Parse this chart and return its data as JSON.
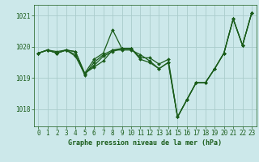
{
  "title": "Graphe pression niveau de la mer (hPa)",
  "bg_color": "#cce8ea",
  "grid_color": "#aacccc",
  "line_color": "#1a5c1a",
  "xlim": [
    -0.5,
    23.5
  ],
  "ylim": [
    1017.45,
    1021.35
  ],
  "yticks": [
    1018,
    1019,
    1020,
    1021
  ],
  "xticks": [
    0,
    1,
    2,
    3,
    4,
    5,
    6,
    7,
    8,
    9,
    10,
    11,
    12,
    13,
    14,
    15,
    16,
    17,
    18,
    19,
    20,
    21,
    22,
    23
  ],
  "series": [
    {
      "x": [
        0,
        1,
        2,
        3,
        4,
        5,
        6,
        7,
        8,
        9,
        10,
        11,
        12,
        13,
        14,
        15,
        16,
        17,
        18,
        19,
        20,
        21,
        22,
        23
      ],
      "y": [
        1019.8,
        1019.9,
        1019.8,
        1019.9,
        1019.7,
        1019.15,
        1019.6,
        1019.8,
        1020.55,
        1019.95,
        1019.95,
        1019.6,
        1019.5,
        1019.3,
        1019.5,
        1017.75,
        1018.3,
        1018.85,
        1018.85,
        1019.3,
        1019.8,
        1020.9,
        1020.05,
        1021.1
      ]
    },
    {
      "x": [
        0,
        1,
        2,
        3,
        4,
        5,
        6,
        7,
        8,
        9,
        10,
        11,
        12,
        13,
        14,
        15,
        16,
        17,
        18,
        19,
        20,
        21,
        22,
        23
      ],
      "y": [
        1019.8,
        1019.9,
        1019.8,
        1019.9,
        1019.85,
        1019.15,
        1019.35,
        1019.55,
        1019.9,
        1019.95,
        1019.95,
        1019.65,
        1019.65,
        1019.45,
        1019.6,
        1017.75,
        1018.3,
        1018.85,
        1018.85,
        1019.3,
        1019.8,
        1020.9,
        1020.05,
        1021.1
      ]
    },
    {
      "x": [
        0,
        1,
        2,
        3,
        4,
        5,
        6,
        7,
        8,
        9,
        10,
        11,
        12,
        13,
        14,
        15,
        16,
        17,
        18,
        19,
        20,
        21,
        22,
        23
      ],
      "y": [
        1019.8,
        1019.9,
        1019.85,
        1019.9,
        1019.75,
        1019.1,
        1019.5,
        1019.75,
        1019.9,
        1019.9,
        1019.9,
        1019.75,
        1019.55,
        1019.3,
        1019.5,
        1017.75,
        1018.3,
        1018.85,
        1018.85,
        1019.3,
        1019.8,
        1020.9,
        1020.05,
        1021.1
      ]
    },
    {
      "x": [
        0,
        1,
        2,
        3,
        4,
        5,
        6,
        7,
        8,
        9,
        10
      ],
      "y": [
        1019.8,
        1019.9,
        1019.8,
        1019.9,
        1019.85,
        1019.15,
        1019.4,
        1019.7,
        1019.85,
        1019.95,
        1019.95
      ]
    }
  ],
  "tick_fontsize": 5.5,
  "xlabel_fontsize": 6.0,
  "linewidth": 0.9,
  "markersize": 2.0
}
